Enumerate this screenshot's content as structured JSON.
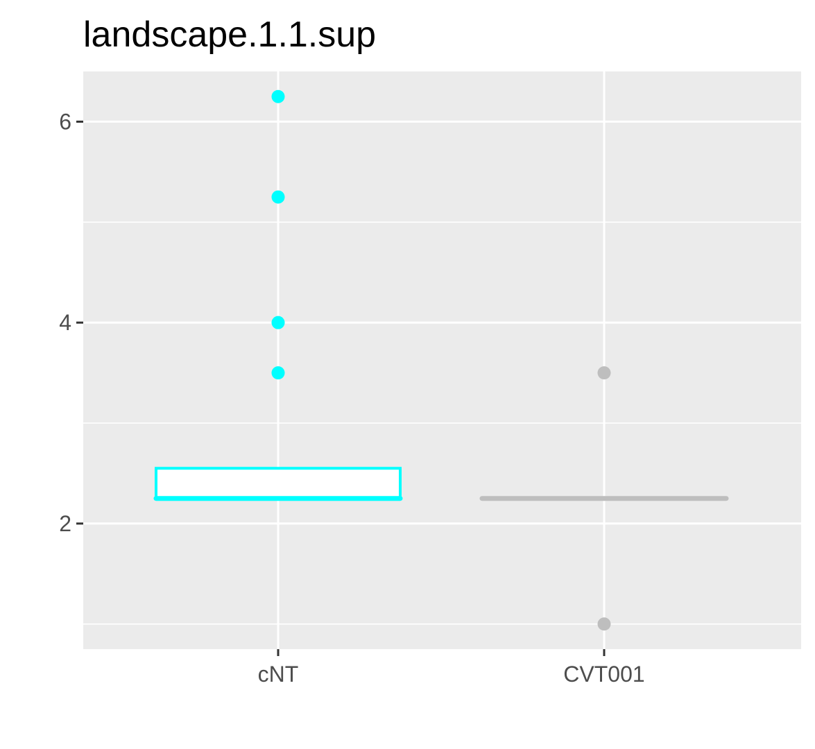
{
  "chart_data": {
    "type": "box",
    "title": "landscape.1.1.sup",
    "xlabel": "",
    "ylabel": "",
    "categories": [
      "cNT",
      "CVT001"
    ],
    "ylim": [
      0.75,
      6.5
    ],
    "y_ticks": [
      2,
      4,
      6
    ],
    "y_minor_ticks": [
      1,
      3,
      5
    ],
    "grid": true,
    "legend": "none",
    "series": [
      {
        "name": "cNT",
        "color": "#00ffff",
        "fill": "#ffffff",
        "q1": 2.25,
        "median": 2.25,
        "q3": 2.55,
        "whisker_low": 2.25,
        "whisker_high": 2.55,
        "outliers": [
          6.25,
          5.25,
          4.0,
          3.5
        ]
      },
      {
        "name": "CVT001",
        "color": "#bebebe",
        "fill": "#ffffff",
        "q1": 2.25,
        "median": 2.25,
        "q3": 2.25,
        "whisker_low": 2.25,
        "whisker_high": 2.25,
        "outliers": [
          3.5,
          1.0
        ]
      }
    ]
  },
  "colors": {
    "panel_background": "#ebebeb",
    "grid_line": "#ffffff",
    "axis_text": "#4d4d4d",
    "tick_mark": "#333333",
    "title_text": "#000000"
  }
}
